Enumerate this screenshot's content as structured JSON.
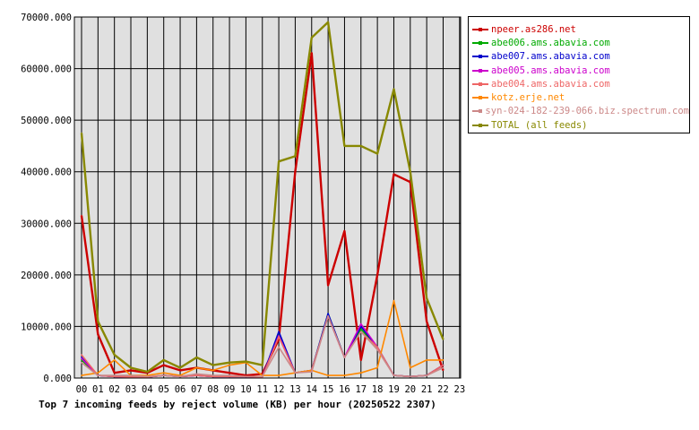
{
  "chart_data": {
    "type": "line",
    "title": "Top 7 incoming feeds by reject volume (KB) per hour (20250522 2307)",
    "xlabel": "",
    "ylabel": "",
    "ylim": [
      0,
      70000
    ],
    "yticks": [
      "0.000",
      "10000.000",
      "20000.000",
      "30000.000",
      "40000.000",
      "50000.000",
      "60000.000",
      "70000.000"
    ],
    "yticks_values": [
      0,
      10000,
      20000,
      30000,
      40000,
      50000,
      60000,
      70000
    ],
    "categories": [
      "00",
      "01",
      "02",
      "03",
      "04",
      "05",
      "06",
      "07",
      "08",
      "09",
      "10",
      "11",
      "12",
      "13",
      "14",
      "15",
      "16",
      "17",
      "18",
      "19",
      "20",
      "21",
      "22",
      "23"
    ],
    "grid": true,
    "legend_position": "right",
    "series": [
      {
        "name": "npeer.as286.net",
        "color": "#cc0000",
        "values": [
          31500,
          8500,
          1000,
          1500,
          1000,
          2500,
          1500,
          2000,
          1500,
          1000,
          500,
          800,
          7500,
          40000,
          63000,
          18000,
          28500,
          3500,
          20000,
          39500,
          38000,
          11000,
          1500,
          null
        ]
      },
      {
        "name": "abe006.ams.abavia.com",
        "color": "#00aa00",
        "values": [
          3500,
          500,
          300,
          200,
          200,
          500,
          300,
          500,
          300,
          300,
          300,
          200,
          8500,
          1000,
          1500,
          12500,
          4000,
          9500,
          6000,
          500,
          300,
          500,
          2500,
          null
        ]
      },
      {
        "name": "abe007.ams.abavia.com",
        "color": "#0000cc",
        "values": [
          4000,
          500,
          300,
          200,
          200,
          500,
          300,
          500,
          300,
          300,
          300,
          200,
          9000,
          1000,
          1500,
          12500,
          4000,
          10000,
          6000,
          500,
          300,
          500,
          2500,
          null
        ]
      },
      {
        "name": "abe005.ams.abavia.com",
        "color": "#cc00cc",
        "values": [
          3800,
          500,
          300,
          200,
          200,
          500,
          300,
          500,
          300,
          300,
          300,
          200,
          8200,
          1000,
          1500,
          12000,
          4000,
          10500,
          6000,
          500,
          300,
          500,
          2500,
          null
        ]
      },
      {
        "name": "abe004.ams.abavia.com",
        "color": "#ee6666",
        "values": [
          4500,
          500,
          300,
          200,
          200,
          500,
          300,
          500,
          300,
          300,
          300,
          200,
          8000,
          1000,
          1500,
          12000,
          4000,
          9000,
          6000,
          500,
          300,
          500,
          2500,
          null
        ]
      },
      {
        "name": "kotz.erje.net",
        "color": "#ff8800",
        "values": [
          500,
          1000,
          3500,
          500,
          500,
          1000,
          500,
          2000,
          1500,
          2500,
          3000,
          500,
          500,
          1000,
          1500,
          500,
          500,
          1000,
          2000,
          15000,
          2000,
          3500,
          3500,
          null
        ]
      },
      {
        "name": "syn-024-182-239-066.biz.spectrum.com",
        "color": "#cc8888",
        "values": [
          3000,
          500,
          500,
          500,
          300,
          500,
          300,
          800,
          500,
          500,
          300,
          300,
          6000,
          1000,
          1200,
          12000,
          4000,
          9000,
          5500,
          500,
          300,
          500,
          2000,
          null
        ]
      },
      {
        "name": "TOTAL (all feeds)",
        "color": "#888800",
        "values": [
          47500,
          11000,
          4500,
          2000,
          1200,
          3500,
          2000,
          4000,
          2500,
          3000,
          3200,
          2500,
          42000,
          43000,
          66000,
          69000,
          45000,
          45000,
          43500,
          56000,
          40000,
          15500,
          7500,
          null
        ]
      }
    ]
  }
}
